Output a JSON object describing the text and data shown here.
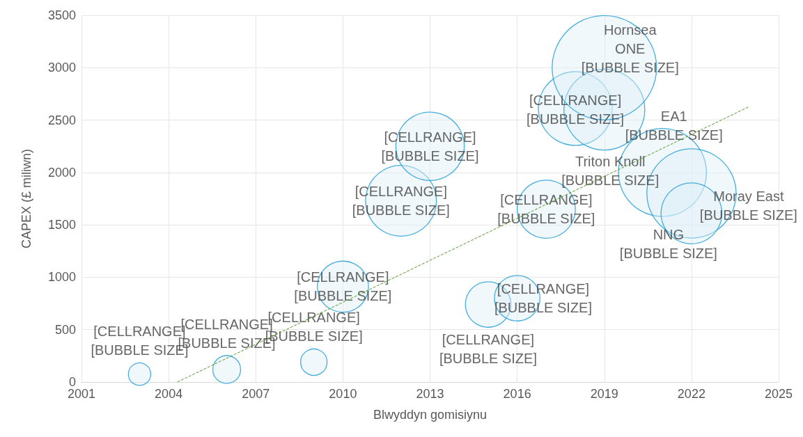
{
  "chart_data": {
    "type": "bubble",
    "xlabel": "Blwyddyn gomisiynu",
    "ylabel": "CAPEX (£ miliwn)",
    "xlim": [
      2001,
      2025
    ],
    "xticks": [
      2001,
      2004,
      2007,
      2010,
      2013,
      2016,
      2019,
      2022,
      2025
    ],
    "ylim": [
      0,
      3500
    ],
    "yticks": [
      0,
      500,
      1000,
      1500,
      2000,
      2500,
      3000,
      3500
    ],
    "grid": true,
    "series": [
      {
        "color": "#1a9ad6",
        "x": [
          2003,
          2006,
          2009,
          2010,
          2012,
          2013,
          2015,
          2016,
          2017,
          2018,
          2019,
          2019,
          2021,
          2022,
          2022
        ],
        "values": [
          75,
          120,
          190,
          910,
          1730,
          2250,
          740,
          800,
          1650,
          2610,
          2600,
          3000,
          2000,
          1800,
          1610
        ],
        "sizes": [
          0.046,
          0.071,
          0.064,
          0.24,
          0.46,
          0.43,
          0.19,
          0.19,
          0.31,
          0.5,
          0.6,
          1,
          0.71,
          0.73,
          0.34
        ],
        "value_labels": [
          "[CELLRANGE]\n[BUBBLE SIZE]",
          "[CELLRANGE]\n[BUBBLE SIZE]",
          "[CELLRANGE]\n[BUBBLE SIZE]",
          "[CELLRANGE]\n[BUBBLE SIZE]",
          "[CELLRANGE]\n[BUBBLE SIZE]",
          "[CELLRANGE]\n[BUBBLE SIZE]",
          "[CELLRANGE]\n[BUBBLE SIZE]",
          "[CELLRANGE]\n[BUBBLE SIZE]",
          "[CELLRANGE]\n[BUBBLE SIZE]",
          "[CELLRANGE]\n[BUBBLE SIZE]",
          "EA1\n[BUBBLE SIZE]",
          "Hornsea\nONE\n[BUBBLE SIZE]",
          "Triton Knoll\n[BUBBLE SIZE]",
          "Moray East\n[BUBBLE SIZE]",
          "NNG\n[BUBBLE SIZE]"
        ]
      },
      {
        "type": "line",
        "color": "#4f9a2a",
        "line_style": "dashed",
        "marker": "none",
        "x": [
          2004.3,
          2024
        ],
        "values": [
          0,
          2630
        ]
      }
    ]
  }
}
